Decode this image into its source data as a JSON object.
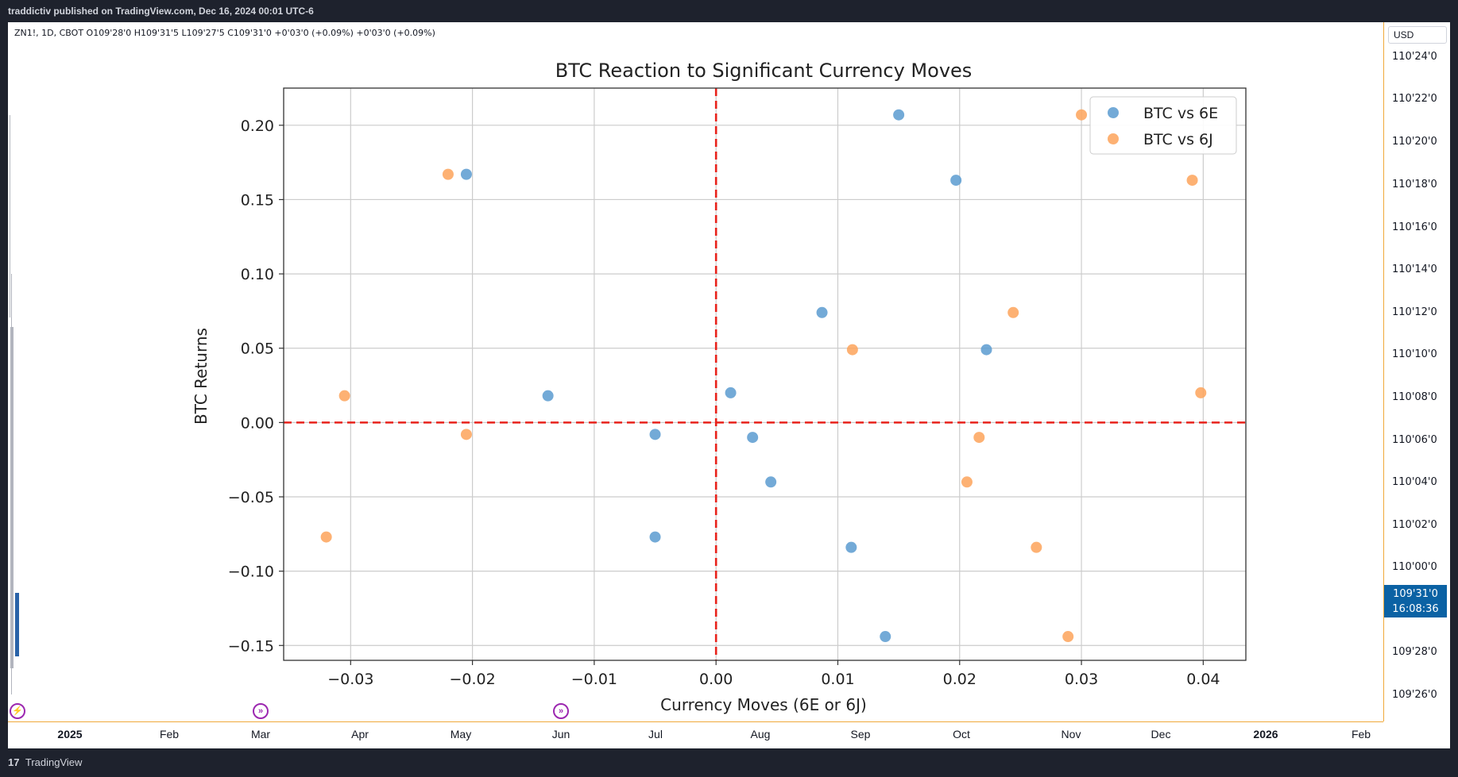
{
  "header": {
    "published_line": "traddictiv published on TradingView.com, Dec 16, 2024 00:01 UTC-6"
  },
  "symbol_info": "ZN1!, 1D, CBOT  O109'28'0  H109'31'5  L109'27'5  C109'31'0  +0'03'0 (+0.09%)  +0'03'0 (+0.09%)",
  "price_axis": {
    "currency": "USD",
    "ticks": [
      "110'24'0",
      "110'22'0",
      "110'20'0",
      "110'18'0",
      "110'16'0",
      "110'14'0",
      "110'12'0",
      "110'10'0",
      "110'08'0",
      "110'06'0",
      "110'04'0",
      "110'02'0",
      "110'00'0",
      "109'28'0",
      "109'26'0"
    ],
    "last_price": "109'31'0",
    "countdown": "16:08:36"
  },
  "time_axis": {
    "labels": [
      {
        "text": "2025",
        "bold": true
      },
      {
        "text": "Feb",
        "bold": false
      },
      {
        "text": "Mar",
        "bold": false
      },
      {
        "text": "Apr",
        "bold": false
      },
      {
        "text": "May",
        "bold": false
      },
      {
        "text": "Jun",
        "bold": false
      },
      {
        "text": "Jul",
        "bold": false
      },
      {
        "text": "Aug",
        "bold": false
      },
      {
        "text": "Sep",
        "bold": false
      },
      {
        "text": "Oct",
        "bold": false
      },
      {
        "text": "Nov",
        "bold": false
      },
      {
        "text": "Dec",
        "bold": false
      },
      {
        "text": "2026",
        "bold": true
      },
      {
        "text": "Feb",
        "bold": false
      }
    ]
  },
  "footer": {
    "logo_mark": "17",
    "brand": "TradingView"
  },
  "chart_data": {
    "type": "scatter",
    "title": "BTC Reaction to Significant Currency Moves",
    "xlabel": "Currency Moves (6E or 6J)",
    "ylabel": "BTC Returns",
    "xlim": [
      -0.0355,
      0.0435
    ],
    "ylim": [
      -0.16,
      0.225
    ],
    "xticks": [
      -0.03,
      -0.02,
      -0.01,
      0.0,
      0.01,
      0.02,
      0.03,
      0.04
    ],
    "xtick_labels": [
      "−0.03",
      "−0.02",
      "−0.01",
      "0.00",
      "0.01",
      "0.02",
      "0.03",
      "0.04"
    ],
    "yticks": [
      0.2,
      0.15,
      0.1,
      0.05,
      0.0,
      -0.05,
      -0.1,
      -0.15
    ],
    "ytick_labels": [
      "0.20",
      "0.15",
      "0.10",
      "0.05",
      "0.00",
      "−0.05",
      "−0.10",
      "−0.15"
    ],
    "grid": true,
    "legend_position": "top-right",
    "reference_lines": {
      "x": 0,
      "y": 0,
      "color": "#e8221b",
      "style": "dashed"
    },
    "series": [
      {
        "name": "BTC vs 6E",
        "color": "#5b9bd0",
        "points": [
          [
            -0.0205,
            0.167
          ],
          [
            -0.0138,
            0.018
          ],
          [
            -0.005,
            -0.008
          ],
          [
            -0.005,
            -0.077
          ],
          [
            0.0012,
            0.02
          ],
          [
            0.003,
            -0.01
          ],
          [
            0.0045,
            -0.04
          ],
          [
            0.0087,
            0.074
          ],
          [
            0.0111,
            -0.084
          ],
          [
            0.0139,
            -0.144
          ],
          [
            0.015,
            0.207
          ],
          [
            0.0197,
            0.163
          ],
          [
            0.0222,
            0.049
          ]
        ]
      },
      {
        "name": "BTC vs 6J",
        "color": "#fda35a",
        "points": [
          [
            -0.032,
            -0.077
          ],
          [
            -0.0305,
            0.018
          ],
          [
            -0.022,
            0.167
          ],
          [
            -0.0205,
            -0.008
          ],
          [
            0.0112,
            0.049
          ],
          [
            0.0206,
            -0.04
          ],
          [
            0.0216,
            -0.01
          ],
          [
            0.0244,
            0.074
          ],
          [
            0.0263,
            -0.084
          ],
          [
            0.0289,
            -0.144
          ],
          [
            0.03,
            0.207
          ],
          [
            0.0391,
            0.163
          ],
          [
            0.0398,
            0.02
          ]
        ]
      }
    ]
  }
}
